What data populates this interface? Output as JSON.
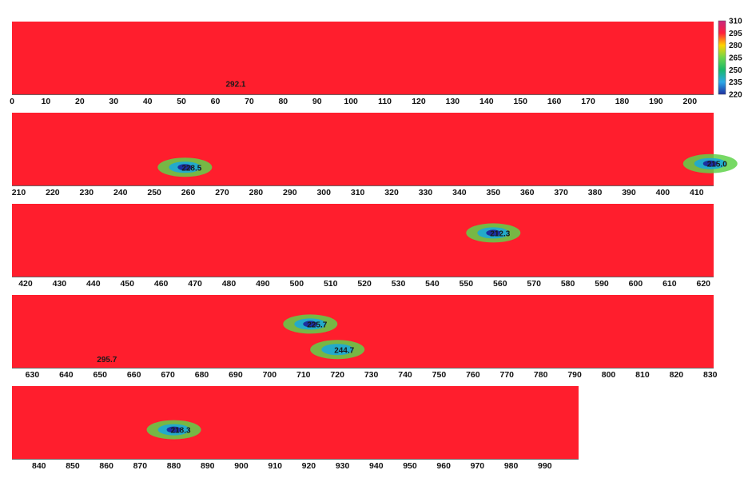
{
  "chart_data": {
    "type": "heatmap",
    "title": "",
    "xlabel": "",
    "ylabel": "",
    "colorscale": {
      "ticks": [
        310,
        295,
        280,
        265,
        250,
        235,
        220
      ],
      "colors": [
        "#c8287f",
        "#ff1e3c",
        "#ffd400",
        "#6fd64a",
        "#19b96a",
        "#2da8e8",
        "#1c2fa0"
      ]
    },
    "strips": [
      {
        "xlim": [
          0,
          207
        ],
        "ticks": [
          0,
          10,
          20,
          30,
          40,
          50,
          60,
          70,
          80,
          90,
          100,
          110,
          120,
          130,
          140,
          150,
          160,
          170,
          180,
          190,
          200
        ],
        "annotations": [
          {
            "label": "292.1",
            "x": 64,
            "pos": 0.85
          }
        ]
      },
      {
        "xlim": [
          208,
          415
        ],
        "ticks": [
          210,
          220,
          230,
          240,
          250,
          260,
          270,
          280,
          290,
          300,
          310,
          320,
          330,
          340,
          350,
          360,
          370,
          380,
          390,
          400,
          410
        ],
        "annotations": [
          {
            "label": "228.5",
            "x": 259,
            "pos": 0.75
          },
          {
            "label": "215.0",
            "x": 414,
            "pos": 0.7
          }
        ]
      },
      {
        "xlim": [
          416,
          623
        ],
        "ticks": [
          420,
          430,
          440,
          450,
          460,
          470,
          480,
          490,
          500,
          510,
          520,
          530,
          540,
          550,
          560,
          570,
          580,
          590,
          600,
          610,
          620
        ],
        "annotations": [
          {
            "label": "212.3",
            "x": 558,
            "pos": 0.4
          }
        ]
      },
      {
        "xlim": [
          624,
          831
        ],
        "ticks": [
          630,
          640,
          650,
          660,
          670,
          680,
          690,
          700,
          710,
          720,
          730,
          740,
          750,
          760,
          770,
          780,
          790,
          800,
          810,
          820,
          830
        ],
        "annotations": [
          {
            "label": "225.7",
            "x": 712,
            "pos": 0.4
          },
          {
            "label": "244.7",
            "x": 720,
            "pos": 0.75
          },
          {
            "label": "295.7",
            "x": 650,
            "pos": 0.88
          }
        ]
      },
      {
        "xlim": [
          832,
          1000
        ],
        "ticks": [
          840,
          850,
          860,
          870,
          880,
          890,
          900,
          910,
          920,
          930,
          940,
          950,
          960,
          970,
          980,
          990
        ],
        "annotations": [
          {
            "label": "218.3",
            "x": 880,
            "pos": 0.6
          }
        ]
      }
    ]
  }
}
